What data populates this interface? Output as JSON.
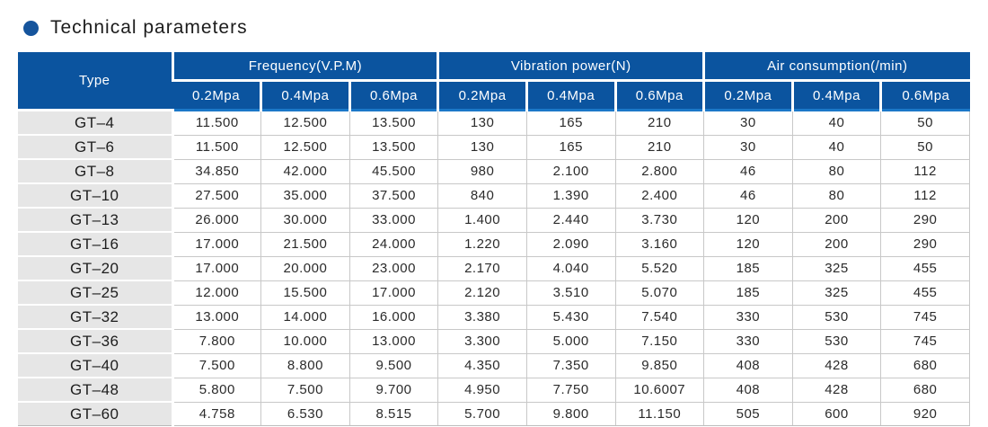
{
  "title": {
    "text": "Technical parameters",
    "bullet_color": "#15549c"
  },
  "colors": {
    "header_blue": "#0b549f",
    "accent_rule_blue": "#1b78c8",
    "type_column_gray": "#e6e6e6",
    "grid_gray": "#c8c8c8"
  },
  "table": {
    "type_header": "Type",
    "groups": [
      {
        "label": "Frequency(V.P.M)"
      },
      {
        "label": "Vibration power(N)"
      },
      {
        "label": "Air consumption(/min)"
      }
    ],
    "subheaders": [
      "0.2Mpa",
      "0.4Mpa",
      "0.6Mpa",
      "0.2Mpa",
      "0.4Mpa",
      "0.6Mpa",
      "0.2Mpa",
      "0.4Mpa",
      "0.6Mpa"
    ],
    "rows": [
      {
        "type": "GT–4",
        "values": [
          "11.500",
          "12.500",
          "13.500",
          "130",
          "165",
          "210",
          "30",
          "40",
          "50"
        ]
      },
      {
        "type": "GT–6",
        "values": [
          "11.500",
          "12.500",
          "13.500",
          "130",
          "165",
          "210",
          "30",
          "40",
          "50"
        ]
      },
      {
        "type": "GT–8",
        "values": [
          "34.850",
          "42.000",
          "45.500",
          "980",
          "2.100",
          "2.800",
          "46",
          "80",
          "112"
        ]
      },
      {
        "type": "GT–10",
        "values": [
          "27.500",
          "35.000",
          "37.500",
          "840",
          "1.390",
          "2.400",
          "46",
          "80",
          "112"
        ]
      },
      {
        "type": "GT–13",
        "values": [
          "26.000",
          "30.000",
          "33.000",
          "1.400",
          "2.440",
          "3.730",
          "120",
          "200",
          "290"
        ]
      },
      {
        "type": "GT–16",
        "values": [
          "17.000",
          "21.500",
          "24.000",
          "1.220",
          "2.090",
          "3.160",
          "120",
          "200",
          "290"
        ]
      },
      {
        "type": "GT–20",
        "values": [
          "17.000",
          "20.000",
          "23.000",
          "2.170",
          "4.040",
          "5.520",
          "185",
          "325",
          "455"
        ]
      },
      {
        "type": "GT–25",
        "values": [
          "12.000",
          "15.500",
          "17.000",
          "2.120",
          "3.510",
          "5.070",
          "185",
          "325",
          "455"
        ]
      },
      {
        "type": "GT–32",
        "values": [
          "13.000",
          "14.000",
          "16.000",
          "3.380",
          "5.430",
          "7.540",
          "330",
          "530",
          "745"
        ]
      },
      {
        "type": "GT–36",
        "values": [
          "7.800",
          "10.000",
          "13.000",
          "3.300",
          "5.000",
          "7.150",
          "330",
          "530",
          "745"
        ]
      },
      {
        "type": "GT–40",
        "values": [
          "7.500",
          "8.800",
          "9.500",
          "4.350",
          "7.350",
          "9.850",
          "408",
          "428",
          "680"
        ]
      },
      {
        "type": "GT–48",
        "values": [
          "5.800",
          "7.500",
          "9.700",
          "4.950",
          "7.750",
          "10.6007",
          "408",
          "428",
          "680"
        ]
      },
      {
        "type": "GT–60",
        "values": [
          "4.758",
          "6.530",
          "8.515",
          "5.700",
          "9.800",
          "11.150",
          "505",
          "600",
          "920"
        ]
      }
    ]
  }
}
